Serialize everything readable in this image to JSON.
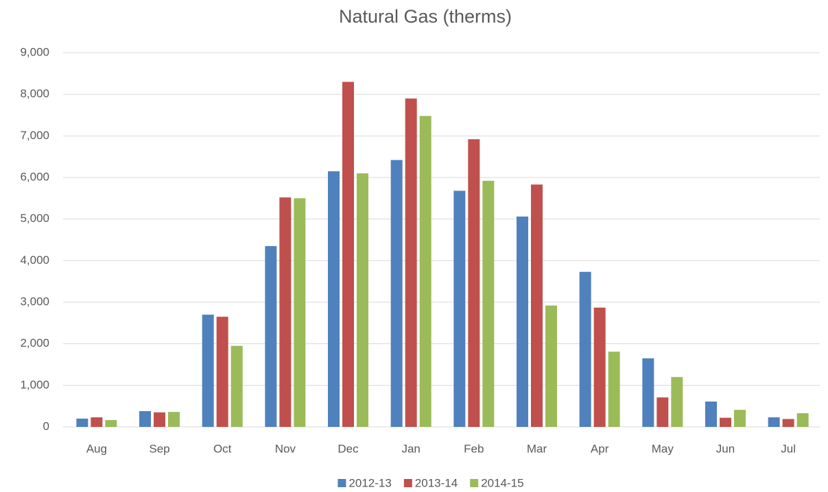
{
  "chart_data": {
    "type": "bar",
    "title": "Natural Gas (therms)",
    "categories": [
      "Aug",
      "Sep",
      "Oct",
      "Nov",
      "Dec",
      "Jan",
      "Feb",
      "Mar",
      "Apr",
      "May",
      "Jun",
      "Jul"
    ],
    "series": [
      {
        "name": "2012-13",
        "color": "#4f81bd",
        "values": [
          200,
          380,
          2700,
          4350,
          6150,
          6420,
          5680,
          5060,
          3730,
          1650,
          610,
          230
        ]
      },
      {
        "name": "2013-14",
        "color": "#c0504d",
        "values": [
          230,
          350,
          2650,
          5520,
          8300,
          7900,
          6920,
          5830,
          2870,
          710,
          220,
          190
        ]
      },
      {
        "name": "2014-15",
        "color": "#9bbb59",
        "values": [
          165,
          360,
          1950,
          5500,
          6100,
          7480,
          5920,
          2920,
          1810,
          1200,
          410,
          330
        ]
      }
    ],
    "ylim": [
      0,
      9000
    ],
    "yticks": [
      0,
      {
        "value": 1000,
        "label": "1,000"
      },
      {
        "value": 2000,
        "label": "2,000"
      },
      {
        "value": 3000,
        "label": "3,000"
      },
      {
        "value": 4000,
        "label": "4,000"
      },
      {
        "value": 5000,
        "label": "5,000"
      },
      {
        "value": 6000,
        "label": "6,000"
      },
      {
        "value": 7000,
        "label": "7,000"
      },
      {
        "value": 8000,
        "label": "8,000"
      },
      {
        "value": 9000,
        "label": "9,000"
      }
    ],
    "grid": true,
    "legend": "bottom"
  }
}
